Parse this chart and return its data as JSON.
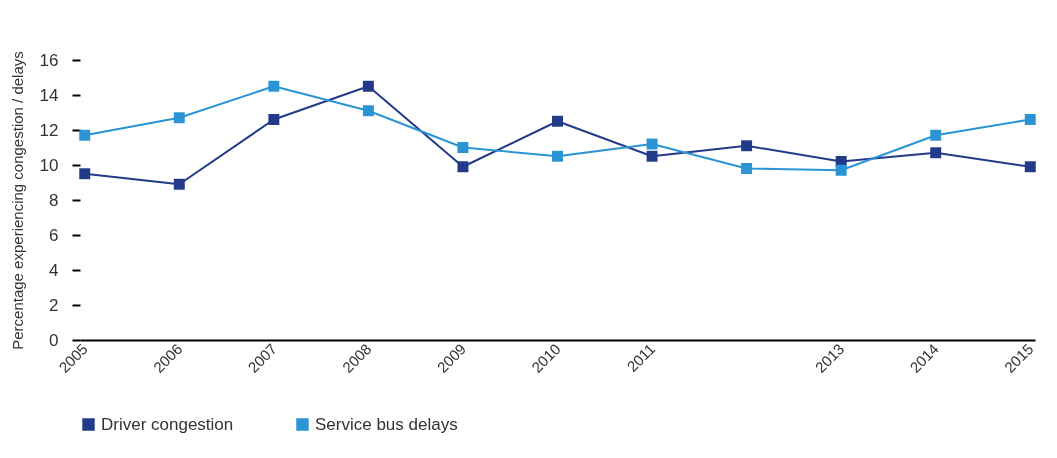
{
  "chart_data": {
    "type": "line",
    "ylabel": "Percentage experiencing congestion / delays",
    "categories": [
      "2005",
      "2006",
      "2007",
      "2008",
      "2009",
      "2010",
      "2011",
      null,
      "2013",
      "2014",
      "2015"
    ],
    "series": [
      {
        "name": "Driver congestion",
        "color": "#233a8a",
        "values": [
          9.5,
          8.9,
          12.6,
          14.5,
          9.9,
          12.5,
          10.5,
          11.1,
          10.2,
          10.7,
          9.9
        ]
      },
      {
        "name": "Service bus delays",
        "color": "#2a94d4",
        "values": [
          11.7,
          12.7,
          14.5,
          13.1,
          11.0,
          10.5,
          11.2,
          9.8,
          9.7,
          11.7,
          12.6
        ]
      }
    ],
    "ylim": [
      0,
      16
    ],
    "yticks": [
      0,
      2,
      4,
      6,
      8,
      10,
      12,
      14,
      16
    ],
    "grid": false,
    "legend": "bottom",
    "marker": "square",
    "line_style": "solid"
  }
}
